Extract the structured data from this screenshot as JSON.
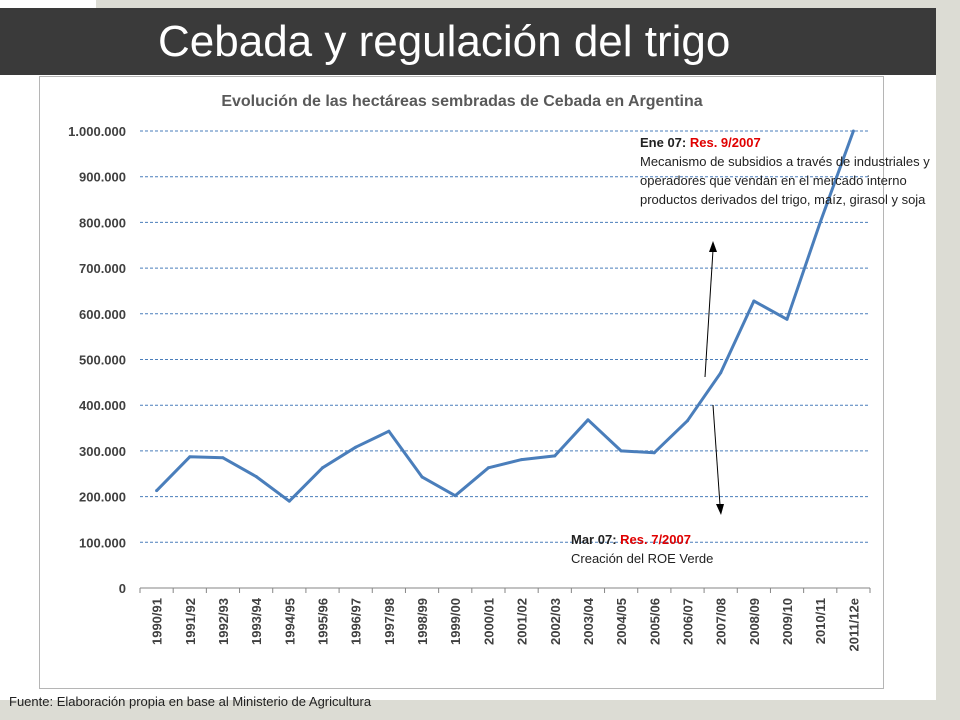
{
  "slide": {
    "title": "Cebada y regulación del trigo",
    "footer": "Fuente: Elaboración propia en base al Ministerio de Agricultura"
  },
  "annotations": {
    "top": {
      "lead": "Ene 07: ",
      "res": "Res. 9/2007",
      "text": "Mecanismo de subsidios a través de industriales y operadores que vendan en el mercado interno productos derivados del trigo, maíz, girasol y soja"
    },
    "bottom": {
      "lead": "Mar 07: ",
      "res": "Res. 7/2007",
      "text": "Creación del ROE Verde"
    },
    "res_color": "#e00000"
  },
  "chart_data": {
    "type": "line",
    "title": "Evolución de las hectáreas sembradas de Cebada en Argentina",
    "categories": [
      "1990/91",
      "1991/92",
      "1992/93",
      "1993/94",
      "1994/95",
      "1995/96",
      "1996/97",
      "1997/98",
      "1998/99",
      "1999/00",
      "2000/01",
      "2001/02",
      "2002/03",
      "2003/04",
      "2004/05",
      "2005/06",
      "2006/07",
      "2007/08",
      "2008/09",
      "2009/10",
      "2010/11",
      "2011/12e"
    ],
    "series": [
      {
        "values": [
          213000,
          287000,
          285000,
          244000,
          190000,
          263000,
          308000,
          343000,
          243000,
          202000,
          263000,
          281000,
          289000,
          368000,
          300000,
          296000,
          366000,
          471000,
          628000,
          588000,
          800000,
          1000000
        ],
        "color": "#4a7ebb"
      }
    ],
    "ylim": [
      0,
      1000000
    ],
    "yticks": [
      0,
      100000,
      200000,
      300000,
      400000,
      500000,
      600000,
      700000,
      800000,
      900000,
      1000000
    ],
    "ytick_labels": [
      "0",
      "100.000",
      "200.000",
      "300.000",
      "400.000",
      "500.000",
      "600.000",
      "700.000",
      "800.000",
      "900.000",
      "1.000.000"
    ],
    "grid": true,
    "grid_color": "#4a7ebb",
    "xlabel": "",
    "ylabel": ""
  }
}
